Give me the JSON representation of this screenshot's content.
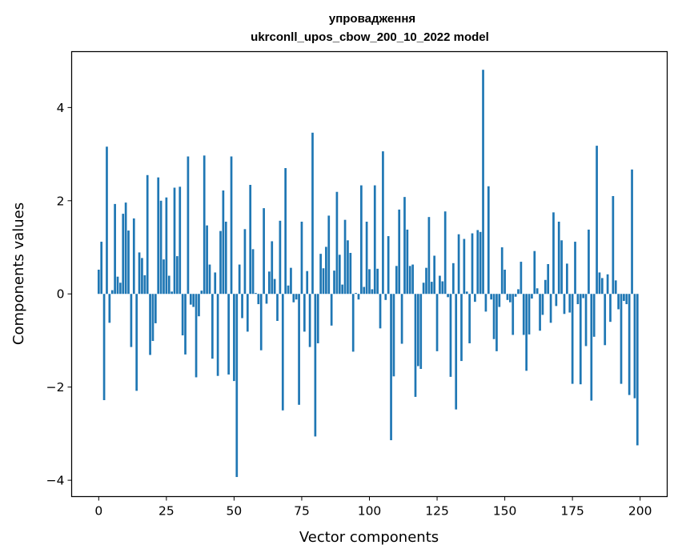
{
  "chart_data": {
    "type": "bar",
    "title_line1": "упровадження",
    "title_line2": "ukrconll_upos_cbow_200_10_2022 model",
    "xlabel": "Vector components",
    "ylabel": "Components values",
    "xlim": [
      -10,
      210
    ],
    "ylim": [
      -4.35,
      5.2
    ],
    "xticks": [
      0,
      25,
      50,
      75,
      100,
      125,
      150,
      175,
      200
    ],
    "yticks": [
      -4,
      -2,
      0,
      2,
      4
    ],
    "xtick_labels": [
      "0",
      "25",
      "50",
      "75",
      "100",
      "125",
      "150",
      "175",
      "200"
    ],
    "ytick_labels": [
      "−4",
      "−2",
      "0",
      "2",
      "4"
    ],
    "grid": false,
    "bar_color": "#1f77b4",
    "values": [
      0.52,
      1.12,
      -2.28,
      3.16,
      -0.62,
      0.08,
      1.93,
      0.37,
      0.24,
      1.72,
      1.96,
      1.36,
      -1.14,
      1.62,
      -2.08,
      0.89,
      0.77,
      0.4,
      2.55,
      -1.31,
      -1.01,
      -0.63,
      2.5,
      2.0,
      0.74,
      2.07,
      0.39,
      0.05,
      2.28,
      0.81,
      2.3,
      -0.89,
      -1.3,
      2.95,
      -0.23,
      -0.28,
      -1.79,
      -0.48,
      0.07,
      2.97,
      1.47,
      0.63,
      -1.39,
      0.46,
      -1.76,
      1.35,
      2.22,
      1.55,
      -1.73,
      2.95,
      -1.87,
      -3.93,
      0.63,
      -0.52,
      1.39,
      -0.81,
      2.34,
      0.96,
      0.02,
      -0.22,
      -1.21,
      1.84,
      -0.21,
      0.48,
      1.13,
      0.32,
      -0.58,
      1.57,
      -2.5,
      2.7,
      0.18,
      0.56,
      -0.18,
      -0.12,
      -2.38,
      1.55,
      -0.81,
      0.49,
      -1.14,
      3.46,
      -3.06,
      -1.06,
      0.86,
      0.55,
      1.01,
      1.68,
      -0.68,
      0.5,
      2.19,
      0.84,
      0.2,
      1.59,
      1.15,
      0.88,
      -1.24,
      0.02,
      -0.12,
      2.33,
      0.15,
      1.55,
      0.53,
      0.1,
      2.33,
      0.54,
      -0.74,
      3.06,
      -0.13,
      1.24,
      -3.14,
      -1.77,
      0.6,
      1.81,
      -1.07,
      2.08,
      1.38,
      0.6,
      0.63,
      -2.21,
      -1.55,
      -1.61,
      0.24,
      0.56,
      1.65,
      0.26,
      0.82,
      -1.23,
      0.39,
      0.27,
      1.77,
      -0.07,
      -1.78,
      0.66,
      -2.48,
      1.28,
      -1.44,
      1.18,
      0.05,
      -1.06,
      1.3,
      -0.17,
      1.37,
      1.33,
      4.81,
      -0.38,
      2.31,
      -0.12,
      -0.97,
      -1.23,
      -0.28,
      1.0,
      0.52,
      -0.13,
      -0.18,
      -0.88,
      -0.06,
      0.1,
      0.69,
      -0.88,
      -1.65,
      -0.87,
      -0.1,
      0.92,
      0.12,
      -0.79,
      -0.45,
      0.3,
      0.64,
      -0.62,
      1.75,
      -0.26,
      1.55,
      1.15,
      -0.43,
      0.65,
      -0.4,
      -1.93,
      1.12,
      -0.22,
      -1.94,
      -0.09,
      -1.12,
      1.38,
      -2.29,
      -0.92,
      3.18,
      0.46,
      0.34,
      -1.1,
      0.42,
      -0.6,
      2.1,
      0.29,
      -0.33,
      -1.93,
      -0.15,
      -0.22,
      -2.17,
      2.67,
      -2.24,
      -3.25
    ]
  }
}
